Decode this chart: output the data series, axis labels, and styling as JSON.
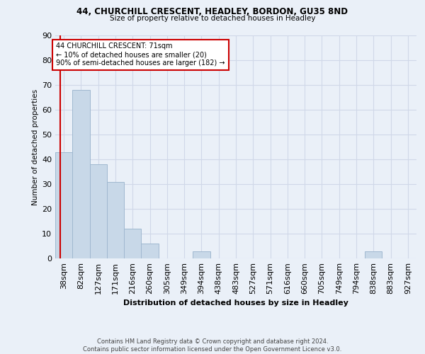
{
  "title1": "44, CHURCHILL CRESCENT, HEADLEY, BORDON, GU35 8ND",
  "title2": "Size of property relative to detached houses in Headley",
  "xlabel": "Distribution of detached houses by size in Headley",
  "ylabel": "Number of detached properties",
  "footnote": "Contains HM Land Registry data © Crown copyright and database right 2024.\nContains public sector information licensed under the Open Government Licence v3.0.",
  "bin_labels": [
    "38sqm",
    "82sqm",
    "127sqm",
    "171sqm",
    "216sqm",
    "260sqm",
    "305sqm",
    "349sqm",
    "394sqm",
    "438sqm",
    "483sqm",
    "527sqm",
    "571sqm",
    "616sqm",
    "660sqm",
    "705sqm",
    "749sqm",
    "794sqm",
    "838sqm",
    "883sqm",
    "927sqm"
  ],
  "bar_heights": [
    43,
    68,
    38,
    31,
    12,
    6,
    0,
    0,
    3,
    0,
    0,
    0,
    0,
    0,
    0,
    0,
    0,
    0,
    3,
    0,
    0
  ],
  "bar_color": "#c8d8e8",
  "bar_edge_color": "#a0b8d0",
  "ylim": [
    0,
    90
  ],
  "yticks": [
    0,
    10,
    20,
    30,
    40,
    50,
    60,
    70,
    80,
    90
  ],
  "annotation_text": "44 CHURCHILL CRESCENT: 71sqm\n← 10% of detached houses are smaller (20)\n90% of semi-detached houses are larger (182) →",
  "annotation_box_color": "#ffffff",
  "annotation_border_color": "#cc0000",
  "vline_color": "#cc0000",
  "grid_color": "#d0d8e8",
  "bg_color": "#eaf0f8"
}
